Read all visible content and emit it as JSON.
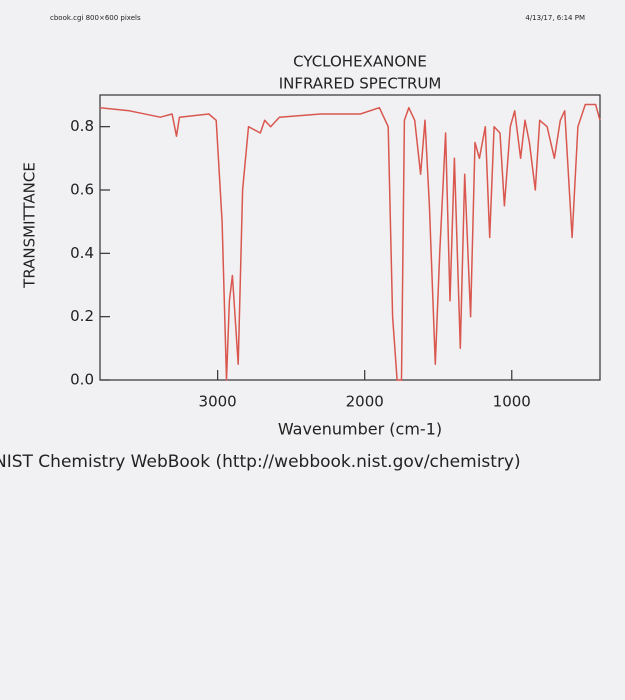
{
  "header": {
    "left": "cbook.cgi 800×600 pixels",
    "right": "4/13/17, 6:14 PM"
  },
  "chart_data": {
    "type": "line",
    "title": [
      "CYCLOHEXANONE",
      "INFRARED SPECTRUM"
    ],
    "y_label": "TRANSMITTANCE",
    "x_label": "Wavenumber (cm-1)",
    "xlim": [
      3800,
      400
    ],
    "ylim": [
      0,
      0.9
    ],
    "xticks": [
      3000,
      2000,
      1000
    ],
    "yticks": [
      {
        "value": 0,
        "label": "0.0"
      },
      0.2,
      0.4,
      0.6,
      0.8
    ],
    "series": [
      {
        "name": "Cyclohexanone",
        "color": "#d9574e",
        "x": [
          3800,
          3600,
          3390,
          3310,
          3280,
          3260,
          3060,
          3010,
          2970,
          2940,
          2920,
          2900,
          2860,
          2830,
          2790,
          2710,
          2680,
          2640,
          2580,
          2300,
          2030,
          1900,
          1840,
          1810,
          1780,
          1750,
          1730,
          1700,
          1660,
          1620,
          1590,
          1560,
          1520,
          1490,
          1450,
          1420,
          1390,
          1350,
          1320,
          1280,
          1250,
          1220,
          1180,
          1150,
          1120,
          1080,
          1050,
          1010,
          980,
          940,
          910,
          880,
          840,
          810,
          760,
          710,
          670,
          640,
          590,
          550,
          500,
          430,
          400
        ],
        "values": [
          0.86,
          0.85,
          0.83,
          0.84,
          0.77,
          0.83,
          0.84,
          0.82,
          0.5,
          0.0,
          0.25,
          0.33,
          0.05,
          0.6,
          0.8,
          0.78,
          0.82,
          0.8,
          0.83,
          0.84,
          0.84,
          0.86,
          0.8,
          0.2,
          0.0,
          0.0,
          0.82,
          0.86,
          0.82,
          0.65,
          0.82,
          0.55,
          0.05,
          0.4,
          0.78,
          0.25,
          0.7,
          0.1,
          0.65,
          0.2,
          0.75,
          0.7,
          0.8,
          0.45,
          0.8,
          0.78,
          0.55,
          0.8,
          0.85,
          0.7,
          0.82,
          0.75,
          0.6,
          0.82,
          0.8,
          0.7,
          0.82,
          0.85,
          0.45,
          0.8,
          0.87,
          0.87,
          0.82
        ]
      }
    ]
  },
  "footer": "NIST Chemistry WebBook (http://webbook.nist.gov/chemistry)"
}
